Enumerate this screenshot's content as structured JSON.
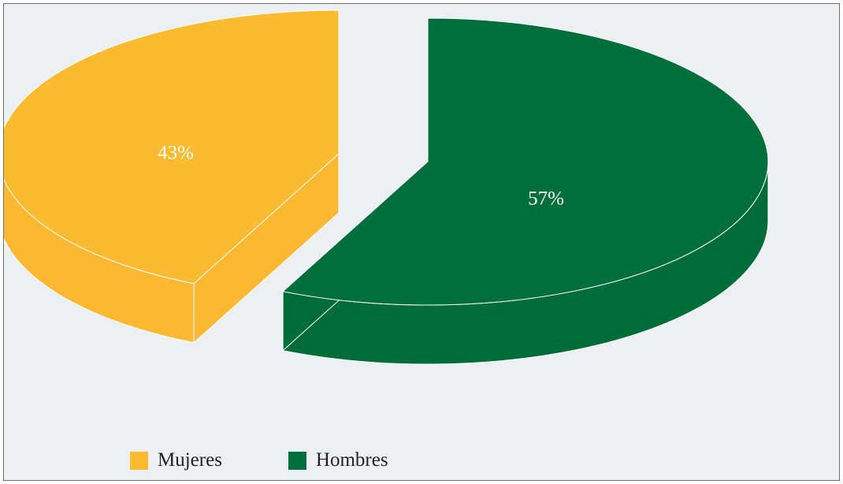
{
  "chart_data": {
    "type": "pie",
    "style": "3d-exploded",
    "title": "",
    "categories": [
      "Mujeres",
      "Hombres"
    ],
    "values": [
      43,
      57
    ],
    "labels": [
      "43%",
      "57%"
    ],
    "colors": [
      "#fbbb30",
      "#006f3c"
    ],
    "side_colors": [
      "#fbb830",
      "#006d38"
    ],
    "legend_position": "bottom-left"
  },
  "colors": {
    "background": "#ecf0f3",
    "border": "#6d6e70",
    "slice_edge": "#ffffff"
  }
}
